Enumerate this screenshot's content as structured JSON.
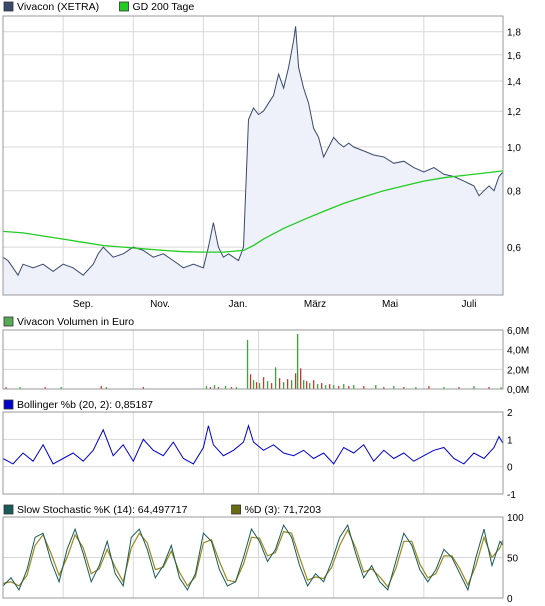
{
  "chart_data": [
    {
      "type": "line",
      "legend": [
        {
          "label": "Vivacon (XETRA)",
          "color": "#3a4a6b"
        },
        {
          "label": "GD 200 Tage",
          "color": "#22cc22"
        }
      ],
      "y_scale": "log",
      "ylim": [
        0.47,
        1.95
      ],
      "y_ticks": [
        "0,6",
        "0,8",
        "1,0",
        "1,2",
        "1,4",
        "1,6",
        "1,8"
      ],
      "y_tick_values": [
        0.6,
        0.8,
        1.0,
        1.2,
        1.4,
        1.6,
        1.8
      ],
      "x_ticks": [
        "Sep.",
        "Nov.",
        "Jan.",
        "März",
        "Mai",
        "Juli"
      ],
      "price_color": "#3a4a6b",
      "fill_color": "#eef0fa",
      "ma_color": "#22cc22",
      "series": [
        {
          "name": "Vivacon (XETRA)",
          "x": [
            0,
            5,
            10,
            15,
            20,
            30,
            40,
            50,
            60,
            70,
            80,
            90,
            95,
            100,
            110,
            120,
            130,
            140,
            150,
            160,
            170,
            180,
            190,
            200,
            205,
            210,
            215,
            220,
            225,
            230,
            235,
            240,
            245,
            250,
            255,
            260,
            265,
            270,
            275,
            280,
            285,
            290,
            292,
            295,
            300,
            305,
            310,
            315,
            320,
            325,
            330,
            335,
            340,
            345,
            350,
            360,
            370,
            380,
            390,
            400,
            410,
            420,
            430,
            440,
            450,
            460,
            465,
            470,
            475,
            480,
            485,
            490,
            495,
            499
          ],
          "values": [
            0.57,
            0.56,
            0.54,
            0.52,
            0.55,
            0.54,
            0.55,
            0.53,
            0.55,
            0.54,
            0.52,
            0.55,
            0.58,
            0.6,
            0.57,
            0.58,
            0.6,
            0.59,
            0.57,
            0.58,
            0.56,
            0.54,
            0.55,
            0.54,
            0.6,
            0.68,
            0.6,
            0.57,
            0.58,
            0.57,
            0.56,
            0.6,
            1.15,
            1.22,
            1.18,
            1.2,
            1.25,
            1.3,
            1.45,
            1.35,
            1.5,
            1.72,
            1.85,
            1.5,
            1.35,
            1.25,
            1.1,
            1.05,
            0.95,
            1.0,
            1.05,
            1.02,
            1.0,
            1.02,
            1.0,
            0.98,
            0.96,
            0.95,
            0.92,
            0.93,
            0.9,
            0.88,
            0.9,
            0.87,
            0.86,
            0.84,
            0.83,
            0.82,
            0.78,
            0.8,
            0.82,
            0.8,
            0.86,
            0.88
          ]
        },
        {
          "name": "GD 200 Tage",
          "x": [
            0,
            20,
            40,
            60,
            80,
            100,
            120,
            140,
            160,
            180,
            200,
            220,
            240,
            250,
            260,
            280,
            300,
            320,
            340,
            360,
            380,
            400,
            420,
            440,
            460,
            480,
            499
          ],
          "values": [
            0.65,
            0.645,
            0.635,
            0.625,
            0.615,
            0.605,
            0.6,
            0.595,
            0.59,
            0.586,
            0.585,
            0.585,
            0.59,
            0.605,
            0.625,
            0.66,
            0.69,
            0.72,
            0.75,
            0.775,
            0.8,
            0.82,
            0.84,
            0.855,
            0.865,
            0.875,
            0.885
          ]
        }
      ]
    },
    {
      "type": "bar",
      "legend": [
        {
          "label": "Vivacon Volumen in Euro",
          "color": "#55aa55"
        }
      ],
      "ylim": [
        0,
        6000000
      ],
      "y_ticks": [
        "0,0M",
        "2,0M",
        "4,0M",
        "6,0M"
      ],
      "y_tick_values": [
        0,
        2000000,
        4000000,
        6000000
      ],
      "colors": [
        "#cc3333",
        "#33aa33"
      ],
      "x": [
        3,
        17,
        42,
        58,
        98,
        103,
        140,
        203,
        207,
        211,
        215,
        222,
        228,
        233,
        244,
        247,
        250,
        253,
        256,
        260,
        264,
        268,
        272,
        276,
        280,
        284,
        288,
        292,
        294,
        297,
        300,
        303,
        306,
        310,
        314,
        318,
        322,
        326,
        330,
        335,
        340,
        345,
        350,
        360,
        372,
        380,
        390,
        400,
        412,
        425,
        440,
        455,
        470,
        485,
        497
      ],
      "values": [
        200000,
        200000,
        200000,
        200000,
        300000,
        200000,
        200000,
        300000,
        200000,
        400000,
        200000,
        300000,
        200000,
        200000,
        5000000,
        1500000,
        900000,
        700000,
        600000,
        1200000,
        800000,
        600000,
        2200000,
        1100000,
        700000,
        1000000,
        900000,
        1600000,
        5600000,
        2100000,
        900000,
        800000,
        600000,
        900000,
        500000,
        600000,
        400000,
        500000,
        400000,
        300000,
        500000,
        300000,
        400000,
        300000,
        400000,
        200000,
        300000,
        200000,
        200000,
        300000,
        200000,
        200000,
        300000,
        200000,
        200000
      ],
      "up": [
        false,
        true,
        false,
        true,
        false,
        true,
        false,
        true,
        false,
        true,
        false,
        true,
        false,
        true,
        true,
        false,
        true,
        false,
        true,
        false,
        true,
        false,
        true,
        false,
        true,
        false,
        true,
        false,
        true,
        false,
        true,
        false,
        true,
        false,
        true,
        false,
        true,
        false,
        true,
        false,
        true,
        false,
        true,
        false,
        true,
        false,
        true,
        false,
        true,
        false,
        true,
        false,
        true,
        false,
        true
      ]
    },
    {
      "type": "line",
      "legend": [
        {
          "label": "Bollinger %b (20, 2): 0,85187",
          "color": "#0000cc"
        }
      ],
      "ylim": [
        -1,
        2
      ],
      "y_ticks": [
        "-1",
        "0",
        "1",
        "2"
      ],
      "y_tick_values": [
        -1,
        0,
        1,
        2
      ],
      "line_color": "#0000cc",
      "series": [
        {
          "name": "Bollinger %b",
          "x": [
            0,
            10,
            20,
            30,
            40,
            50,
            60,
            70,
            80,
            90,
            100,
            110,
            120,
            130,
            140,
            150,
            160,
            170,
            180,
            190,
            200,
            205,
            210,
            220,
            230,
            240,
            245,
            250,
            260,
            270,
            280,
            290,
            300,
            310,
            320,
            330,
            340,
            350,
            360,
            370,
            380,
            390,
            400,
            410,
            420,
            430,
            440,
            450,
            460,
            470,
            480,
            490,
            495,
            499
          ],
          "values": [
            0.3,
            0.1,
            0.5,
            0.2,
            0.8,
            0.1,
            0.3,
            0.5,
            0.2,
            0.6,
            1.35,
            0.4,
            0.8,
            0.2,
            1.0,
            0.6,
            0.4,
            0.9,
            0.3,
            0.1,
            0.7,
            1.5,
            0.8,
            0.4,
            0.6,
            0.9,
            1.5,
            0.9,
            0.6,
            0.8,
            0.5,
            0.4,
            0.6,
            0.3,
            0.5,
            0.1,
            0.7,
            0.5,
            0.8,
            0.2,
            0.6,
            0.3,
            0.5,
            0.2,
            0.4,
            0.6,
            0.7,
            0.3,
            0.1,
            0.5,
            0.3,
            0.7,
            1.1,
            0.85
          ]
        }
      ]
    },
    {
      "type": "line",
      "legend": [
        {
          "label": "Slow Stochastic %K (14): 64,497717",
          "color": "#1a5a5a"
        },
        {
          "label": "%D (3): 71,7203",
          "color": "#6a6a10"
        }
      ],
      "ylim": [
        0,
        100
      ],
      "y_ticks": [
        "0",
        "50",
        "100"
      ],
      "y_tick_values": [
        0,
        50,
        100
      ],
      "k_color": "#1a5a5a",
      "d_color": "#9a8a20",
      "series": [
        {
          "name": "Slow Stochastic %K (14)",
          "x": [
            0,
            8,
            16,
            24,
            32,
            40,
            48,
            56,
            64,
            72,
            80,
            88,
            96,
            104,
            112,
            120,
            128,
            136,
            144,
            152,
            160,
            168,
            176,
            184,
            192,
            200,
            208,
            216,
            224,
            232,
            240,
            248,
            256,
            264,
            272,
            280,
            288,
            296,
            304,
            312,
            320,
            328,
            336,
            344,
            352,
            360,
            368,
            376,
            384,
            392,
            400,
            408,
            416,
            424,
            432,
            440,
            448,
            456,
            464,
            472,
            480,
            488,
            496,
            499
          ],
          "values": [
            15,
            25,
            10,
            35,
            75,
            80,
            45,
            20,
            60,
            85,
            55,
            20,
            40,
            70,
            30,
            15,
            75,
            85,
            60,
            25,
            40,
            65,
            25,
            10,
            30,
            80,
            70,
            35,
            15,
            20,
            50,
            85,
            70,
            45,
            60,
            90,
            75,
            40,
            15,
            30,
            20,
            45,
            75,
            90,
            55,
            25,
            40,
            20,
            10,
            45,
            80,
            65,
            35,
            20,
            35,
            60,
            50,
            30,
            10,
            50,
            85,
            40,
            70,
            65
          ]
        },
        {
          "name": "%D (3)",
          "x": [
            0,
            8,
            16,
            24,
            32,
            40,
            48,
            56,
            64,
            72,
            80,
            88,
            96,
            104,
            112,
            120,
            128,
            136,
            144,
            152,
            160,
            168,
            176,
            184,
            192,
            200,
            208,
            216,
            224,
            232,
            240,
            248,
            256,
            264,
            272,
            280,
            288,
            296,
            304,
            312,
            320,
            328,
            336,
            344,
            352,
            360,
            368,
            376,
            384,
            392,
            400,
            408,
            416,
            424,
            432,
            440,
            448,
            456,
            464,
            472,
            480,
            488,
            496,
            499
          ],
          "values": [
            18,
            20,
            15,
            28,
            65,
            78,
            55,
            28,
            50,
            78,
            62,
            30,
            36,
            60,
            38,
            20,
            62,
            80,
            68,
            35,
            38,
            58,
            32,
            15,
            26,
            68,
            72,
            45,
            22,
            20,
            42,
            75,
            74,
            52,
            56,
            82,
            80,
            50,
            22,
            26,
            24,
            38,
            65,
            84,
            62,
            32,
            36,
            26,
            14,
            36,
            70,
            70,
            42,
            25,
            30,
            52,
            52,
            36,
            16,
            40,
            75,
            50,
            62,
            72
          ]
        }
      ]
    }
  ]
}
